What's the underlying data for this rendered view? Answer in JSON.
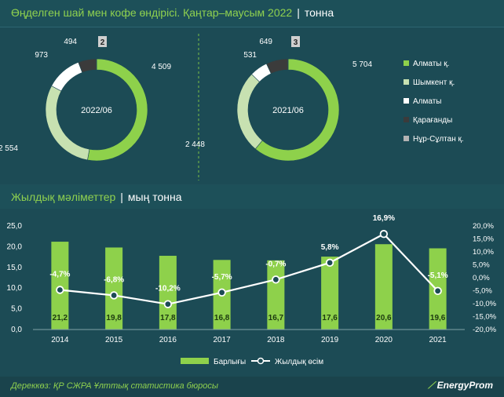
{
  "header": {
    "title": "Өңделген шай мен кофе өндірісі. Қаңтар–маусым 2022",
    "separator": "|",
    "unit": "тонна"
  },
  "section2": {
    "title": "Жылдық мәліметтер",
    "separator": "|",
    "unit": "мың тонна"
  },
  "footer": {
    "source": "Дереккөз: ҚР СЖРА Ұлттық статистика бюросы",
    "brand": "EnergyProm"
  },
  "colors": {
    "almaty_region": "#8ed14b",
    "shymkent": "#c7e1b1",
    "almaty_city": "#ffffff",
    "karagandy": "#3b3b3b",
    "nur_sultan": "#b3b3b3",
    "bar": "#8ed14b",
    "line": "#ffffff"
  },
  "chart_data": [
    {
      "type": "pie",
      "center_label": "2022/06",
      "labels": [
        "Алматы қ.",
        "Шымкент қ.",
        "Алматы",
        "Қарағанды",
        "Нұр-Сұлтан қ."
      ],
      "values": [
        4509,
        2554,
        973,
        494,
        2
      ],
      "value_labels": [
        "4 509",
        "2 554",
        "973",
        "494",
        "2"
      ]
    },
    {
      "type": "pie",
      "center_label": "2021/06",
      "labels": [
        "Алматы қ.",
        "Шымкент қ.",
        "Алматы",
        "Қарағанды",
        "Нұр-Сұлтан қ."
      ],
      "values": [
        5704,
        2448,
        531,
        649,
        3
      ],
      "value_labels": [
        "5 704",
        "2 448",
        "531",
        "649",
        "3"
      ]
    },
    {
      "type": "bar",
      "categories": [
        "2014",
        "2015",
        "2016",
        "2017",
        "2018",
        "2019",
        "2020",
        "2021"
      ],
      "series": [
        {
          "name": "Барлығы",
          "type": "bar",
          "axis": "left",
          "values": [
            21.2,
            19.8,
            17.8,
            16.8,
            16.7,
            17.6,
            20.6,
            19.6
          ],
          "value_labels": [
            "21,2",
            "19,8",
            "17,8",
            "16,8",
            "16,7",
            "17,6",
            "20,6",
            "19,6"
          ]
        },
        {
          "name": "Жылдық өсім",
          "type": "line",
          "axis": "right",
          "values": [
            -4.7,
            -6.8,
            -10.2,
            -5.7,
            -0.7,
            5.8,
            16.9,
            -5.1
          ],
          "value_labels": [
            "-4,7%",
            "-6,8%",
            "-10,2%",
            "-5,7%",
            "-0,7%",
            "5,8%",
            "16,9%",
            "-5,1%"
          ]
        }
      ],
      "ylim": [
        0,
        25
      ],
      "y_ticks": [
        "0,0",
        "5,0",
        "10,0",
        "15,0",
        "20,0",
        "25,0"
      ],
      "y2lim": [
        -20,
        20
      ],
      "y2_ticks": [
        "-20,0%",
        "-15,0%",
        "-10,0%",
        "-5,0%",
        "0,0%",
        "5,0%",
        "10,0%",
        "15,0%",
        "20,0%"
      ],
      "grid": false,
      "legend_position": "bottom"
    }
  ]
}
